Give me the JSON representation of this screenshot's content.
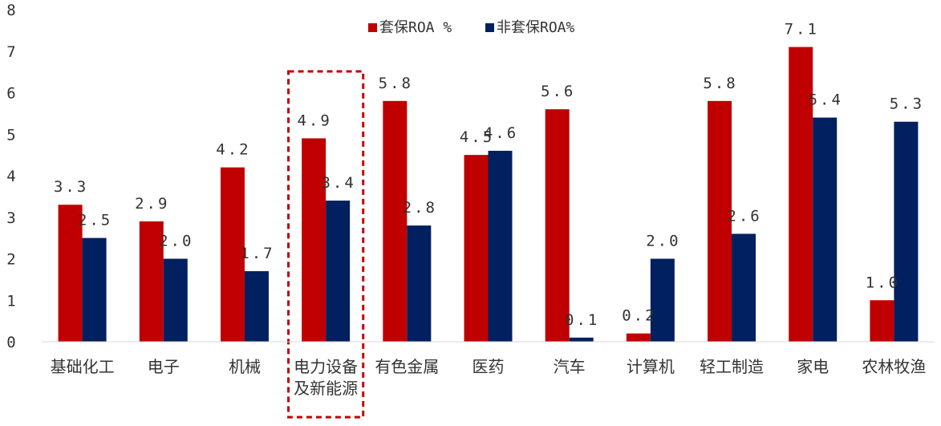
{
  "chart_data": {
    "type": "bar",
    "title": "",
    "xlabel": "",
    "ylabel": "",
    "ylim": [
      0,
      8
    ],
    "yticks": [
      "0",
      "1",
      "2",
      "3",
      "4",
      "5",
      "6",
      "7",
      "8"
    ],
    "grid": false,
    "legend_position": "top-center",
    "categories": [
      "基础化工",
      "电子",
      "机械",
      "电力设备及新能源",
      "有色金属",
      "医药",
      "汽车",
      "计算机",
      "轻工制造",
      "家电",
      "农林牧渔"
    ],
    "category_lines": [
      [
        "基础化工"
      ],
      [
        "电子"
      ],
      [
        "机械"
      ],
      [
        "电力设备",
        "及新能源"
      ],
      [
        "有色金属"
      ],
      [
        "医药"
      ],
      [
        "汽车"
      ],
      [
        "计算机"
      ],
      [
        "轻工制造"
      ],
      [
        "家电"
      ],
      [
        "农林牧渔"
      ]
    ],
    "series": [
      {
        "name": "套保ROA %",
        "color": "#c00000",
        "values": [
          3.3,
          2.9,
          4.2,
          4.9,
          5.8,
          4.5,
          5.6,
          0.2,
          5.8,
          7.1,
          1.0
        ],
        "labels": [
          "3.3",
          "2.9",
          "4.2",
          "4.9",
          "5.8",
          "4.5",
          "5.6",
          "0.2",
          "5.8",
          "7.1",
          "1.0"
        ]
      },
      {
        "name": "非套保ROA%",
        "color": "#002060",
        "values": [
          2.5,
          2.0,
          1.7,
          3.4,
          2.8,
          4.6,
          0.1,
          2.0,
          2.6,
          5.4,
          5.3
        ],
        "labels": [
          "2.5",
          "2.0",
          "1.7",
          "3.4",
          "2.8",
          "4.6",
          "0.1",
          "2.0",
          "2.6",
          "5.4",
          "5.3"
        ]
      }
    ],
    "highlight": {
      "category_index": 3,
      "style": "dashed-box",
      "color": "#c00000"
    }
  }
}
